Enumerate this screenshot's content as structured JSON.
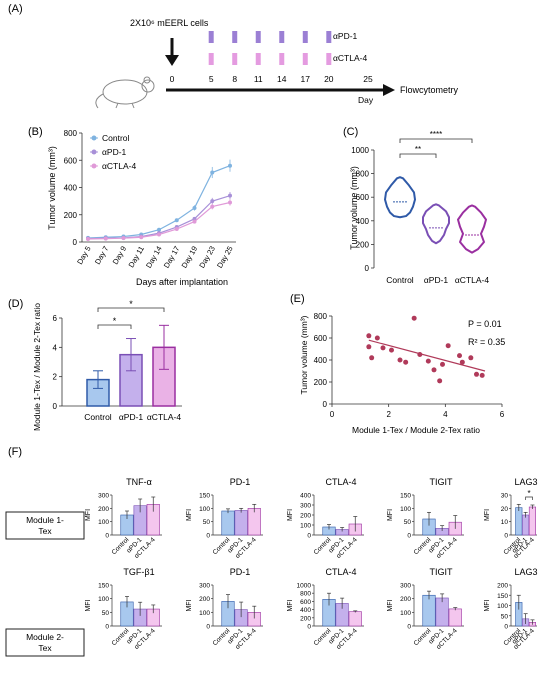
{
  "panel_labels": {
    "A": "(A)",
    "B": "(B)",
    "C": "(C)",
    "D": "(D)",
    "E": "(E)",
    "F": "(F)"
  },
  "colors": {
    "control": "#6fa8dc",
    "apd1": "#9b7fd4",
    "actla4": "#d67fd0",
    "ctrl_dark": "#2f5aa8",
    "apd1_dark": "#7a4fb5",
    "actla4_dark": "#9a2fa0",
    "scatter": "#b03a5a"
  },
  "panel_a": {
    "cells_label": "2X10⁶ mEERL cells",
    "timeline_ticks": [
      0,
      5,
      8,
      11,
      14,
      17,
      20,
      25
    ],
    "treatment_days": [
      5,
      8,
      11,
      14,
      17,
      20
    ],
    "apd1_label": "αPD-1",
    "actla4_label": "αCTLA-4",
    "day_label": "Day",
    "endpoint_label": "Flowcytometry"
  },
  "chart_data": [
    {
      "id": "B",
      "type": "line",
      "ylabel": "Tumor volume (mm³)",
      "xlabel": "Days after implantation",
      "categories": [
        "Day 5",
        "Day 7",
        "Day 9",
        "Day 11",
        "Day 14",
        "Day 17",
        "Day 19",
        "Day 23",
        "Day 25"
      ],
      "ylim": [
        0,
        800
      ],
      "yticks": [
        0,
        200,
        400,
        600,
        800
      ],
      "legend": [
        "Control",
        "αPD-1",
        "αCTLA-4"
      ],
      "series": [
        {
          "name": "Control",
          "values": [
            30,
            35,
            40,
            55,
            90,
            160,
            250,
            510,
            560
          ]
        },
        {
          "name": "αPD-1",
          "values": [
            25,
            28,
            30,
            40,
            65,
            110,
            170,
            300,
            340
          ]
        },
        {
          "name": "αCTLA-4",
          "values": [
            22,
            25,
            28,
            35,
            55,
            95,
            150,
            260,
            290
          ]
        }
      ]
    },
    {
      "id": "C",
      "type": "violin",
      "ylabel": "Tumor volume (mm³)",
      "categories": [
        "Control",
        "αPD-1",
        "αCTLA-4"
      ],
      "ylim": [
        0,
        1000
      ],
      "yticks": [
        0,
        200,
        400,
        600,
        800,
        1000
      ],
      "medians": [
        560,
        340,
        280
      ],
      "significance": [
        {
          "from": 0,
          "to": 1,
          "label": "**"
        },
        {
          "from": 0,
          "to": 2,
          "label": "****"
        }
      ]
    },
    {
      "id": "D",
      "type": "bar",
      "ylabel": "Module 1-Tex / Module 2-Tex ratio",
      "categories": [
        "Control",
        "αPD-1",
        "αCTLA-4"
      ],
      "values": [
        1.8,
        3.5,
        4.0
      ],
      "errors": [
        0.6,
        1.1,
        1.5
      ],
      "ylim": [
        0,
        6
      ],
      "yticks": [
        0,
        2,
        4,
        6
      ],
      "significance": [
        {
          "from": 0,
          "to": 1,
          "label": "*"
        },
        {
          "from": 0,
          "to": 2,
          "label": "*"
        }
      ]
    },
    {
      "id": "E",
      "type": "scatter",
      "ylabel": "Tumor volume (mm³)",
      "xlabel": "Module 1-Tex / Module 2-Tex ratio",
      "xlim": [
        0,
        6
      ],
      "ylim": [
        0,
        800
      ],
      "xticks": [
        0,
        2,
        4,
        6
      ],
      "yticks": [
        0,
        200,
        400,
        600,
        800
      ],
      "points": [
        [
          1.3,
          620
        ],
        [
          1.3,
          520
        ],
        [
          1.4,
          420
        ],
        [
          1.6,
          600
        ],
        [
          1.8,
          510
        ],
        [
          2.1,
          490
        ],
        [
          2.4,
          400
        ],
        [
          2.6,
          380
        ],
        [
          2.9,
          780
        ],
        [
          3.1,
          450
        ],
        [
          3.4,
          390
        ],
        [
          3.6,
          310
        ],
        [
          3.8,
          210
        ],
        [
          3.9,
          360
        ],
        [
          4.1,
          530
        ],
        [
          4.5,
          440
        ],
        [
          4.6,
          380
        ],
        [
          4.9,
          420
        ],
        [
          5.1,
          270
        ],
        [
          5.3,
          260
        ]
      ],
      "fit": [
        [
          1.3,
          580
        ],
        [
          5.4,
          300
        ]
      ],
      "annotations": [
        "P = 0.01",
        "R² = 0.35"
      ]
    },
    {
      "id": "F",
      "type": "bar",
      "group_labels": [
        "Module 1-\nTex",
        "Module 2-\nTex"
      ],
      "ylabel": "MFI",
      "categories": [
        "Control",
        "αPD-1",
        "αCTLA-4"
      ],
      "panels": [
        {
          "title": "TNF-α",
          "ylim": [
            0,
            300
          ],
          "yticks": [
            0,
            100,
            200,
            300
          ],
          "values": [
            150,
            220,
            230
          ],
          "errors": [
            30,
            50,
            55
          ]
        },
        {
          "title": "PD-1",
          "ylim": [
            0,
            150
          ],
          "yticks": [
            0,
            50,
            100,
            150
          ],
          "values": [
            90,
            92,
            100
          ],
          "errors": [
            8,
            8,
            15
          ]
        },
        {
          "title": "CTLA-4",
          "ylim": [
            0,
            400
          ],
          "yticks": [
            0,
            100,
            200,
            300,
            400
          ],
          "values": [
            80,
            55,
            110
          ],
          "errors": [
            25,
            20,
            75
          ]
        },
        {
          "title": "TIGIT",
          "ylim": [
            0,
            150
          ],
          "yticks": [
            0,
            50,
            100,
            150
          ],
          "values": [
            60,
            25,
            48
          ],
          "errors": [
            25,
            10,
            25
          ]
        },
        {
          "title": "LAG3",
          "ylim": [
            0,
            30
          ],
          "yticks": [
            0,
            10,
            20,
            30
          ],
          "values": [
            20.5,
            15,
            21
          ],
          "errors": [
            2.5,
            2,
            1.5
          ],
          "sig": "*"
        },
        {
          "title": "TGF-β1",
          "ylim": [
            0,
            150
          ],
          "yticks": [
            0,
            50,
            100,
            150
          ],
          "values": [
            88,
            62,
            62
          ],
          "errors": [
            20,
            25,
            15
          ]
        },
        {
          "title": "PD-1",
          "ylim": [
            0,
            300
          ],
          "yticks": [
            0,
            100,
            200,
            300
          ],
          "values": [
            180,
            120,
            100
          ],
          "errors": [
            50,
            55,
            45
          ]
        },
        {
          "title": "CTLA-4",
          "ylim": [
            0,
            1000
          ],
          "yticks": [
            0,
            200,
            400,
            600,
            800,
            1000
          ],
          "values": [
            650,
            550,
            350
          ],
          "errors": [
            150,
            130,
            20
          ]
        },
        {
          "title": "TIGIT",
          "ylim": [
            0,
            300
          ],
          "yticks": [
            0,
            100,
            200,
            300
          ],
          "values": [
            225,
            205,
            125
          ],
          "errors": [
            30,
            30,
            10
          ]
        },
        {
          "title": "LAG3",
          "ylim": [
            0,
            200
          ],
          "yticks": [
            0,
            50,
            100,
            150,
            200
          ],
          "values": [
            115,
            35,
            18
          ],
          "errors": [
            35,
            25,
            12
          ]
        }
      ]
    }
  ]
}
